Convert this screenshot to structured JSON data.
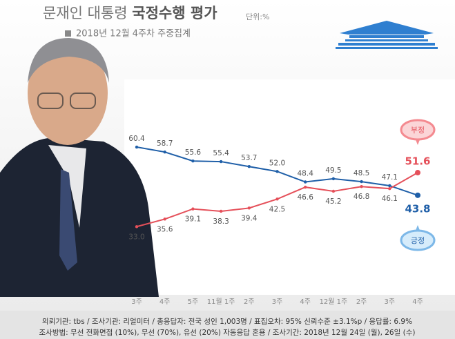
{
  "chart_data": {
    "type": "line",
    "title": "문재인 대통령",
    "title_emphasis": "국정수행 평가",
    "unit": "단위:%",
    "subtitle": "2018년 12월 4주차 주중집계",
    "categories": [
      "3주",
      "4주",
      "5주",
      "11월 1주",
      "2주",
      "3주",
      "4주",
      "12월 1주",
      "2주",
      "3주",
      "4주"
    ],
    "series": [
      {
        "name": "긍정",
        "color": "#1f5fa8",
        "values": [
          60.4,
          58.7,
          55.6,
          55.4,
          53.7,
          52.0,
          48.4,
          49.5,
          48.5,
          47.1,
          43.8
        ],
        "value_labels": [
          "60.4",
          "58.7",
          "55.6",
          "55.4",
          "53.7",
          "52.0",
          "48.4",
          "49.5",
          "48.5",
          "47.1",
          "43.8"
        ]
      },
      {
        "name": "부정",
        "color": "#e5505a",
        "values": [
          33.0,
          35.6,
          39.1,
          38.3,
          39.4,
          42.5,
          46.6,
          45.2,
          46.8,
          46.1,
          51.6
        ],
        "value_labels": [
          "33.0",
          "35.6",
          "39.1",
          "38.3",
          "39.4",
          "42.5",
          "46.6",
          "45.2",
          "46.8",
          "46.1",
          "51.6"
        ]
      }
    ],
    "ylim": [
      10,
      83
    ],
    "footnotes": [
      "의뢰기관: tbs / 조사기관: 리얼미터 / 총응답자: 전국 성인 1,003명 / 표집오차: 95% 신뢰수준 ±3.1%p / 응답률: 6.9%",
      "조사방법: 무선 전화면접 (10%), 무선 (70%), 유선 (20%) 자동응답 혼용 / 조사기간: 2018년 12월 24일 (월), 26일 (수)"
    ]
  }
}
